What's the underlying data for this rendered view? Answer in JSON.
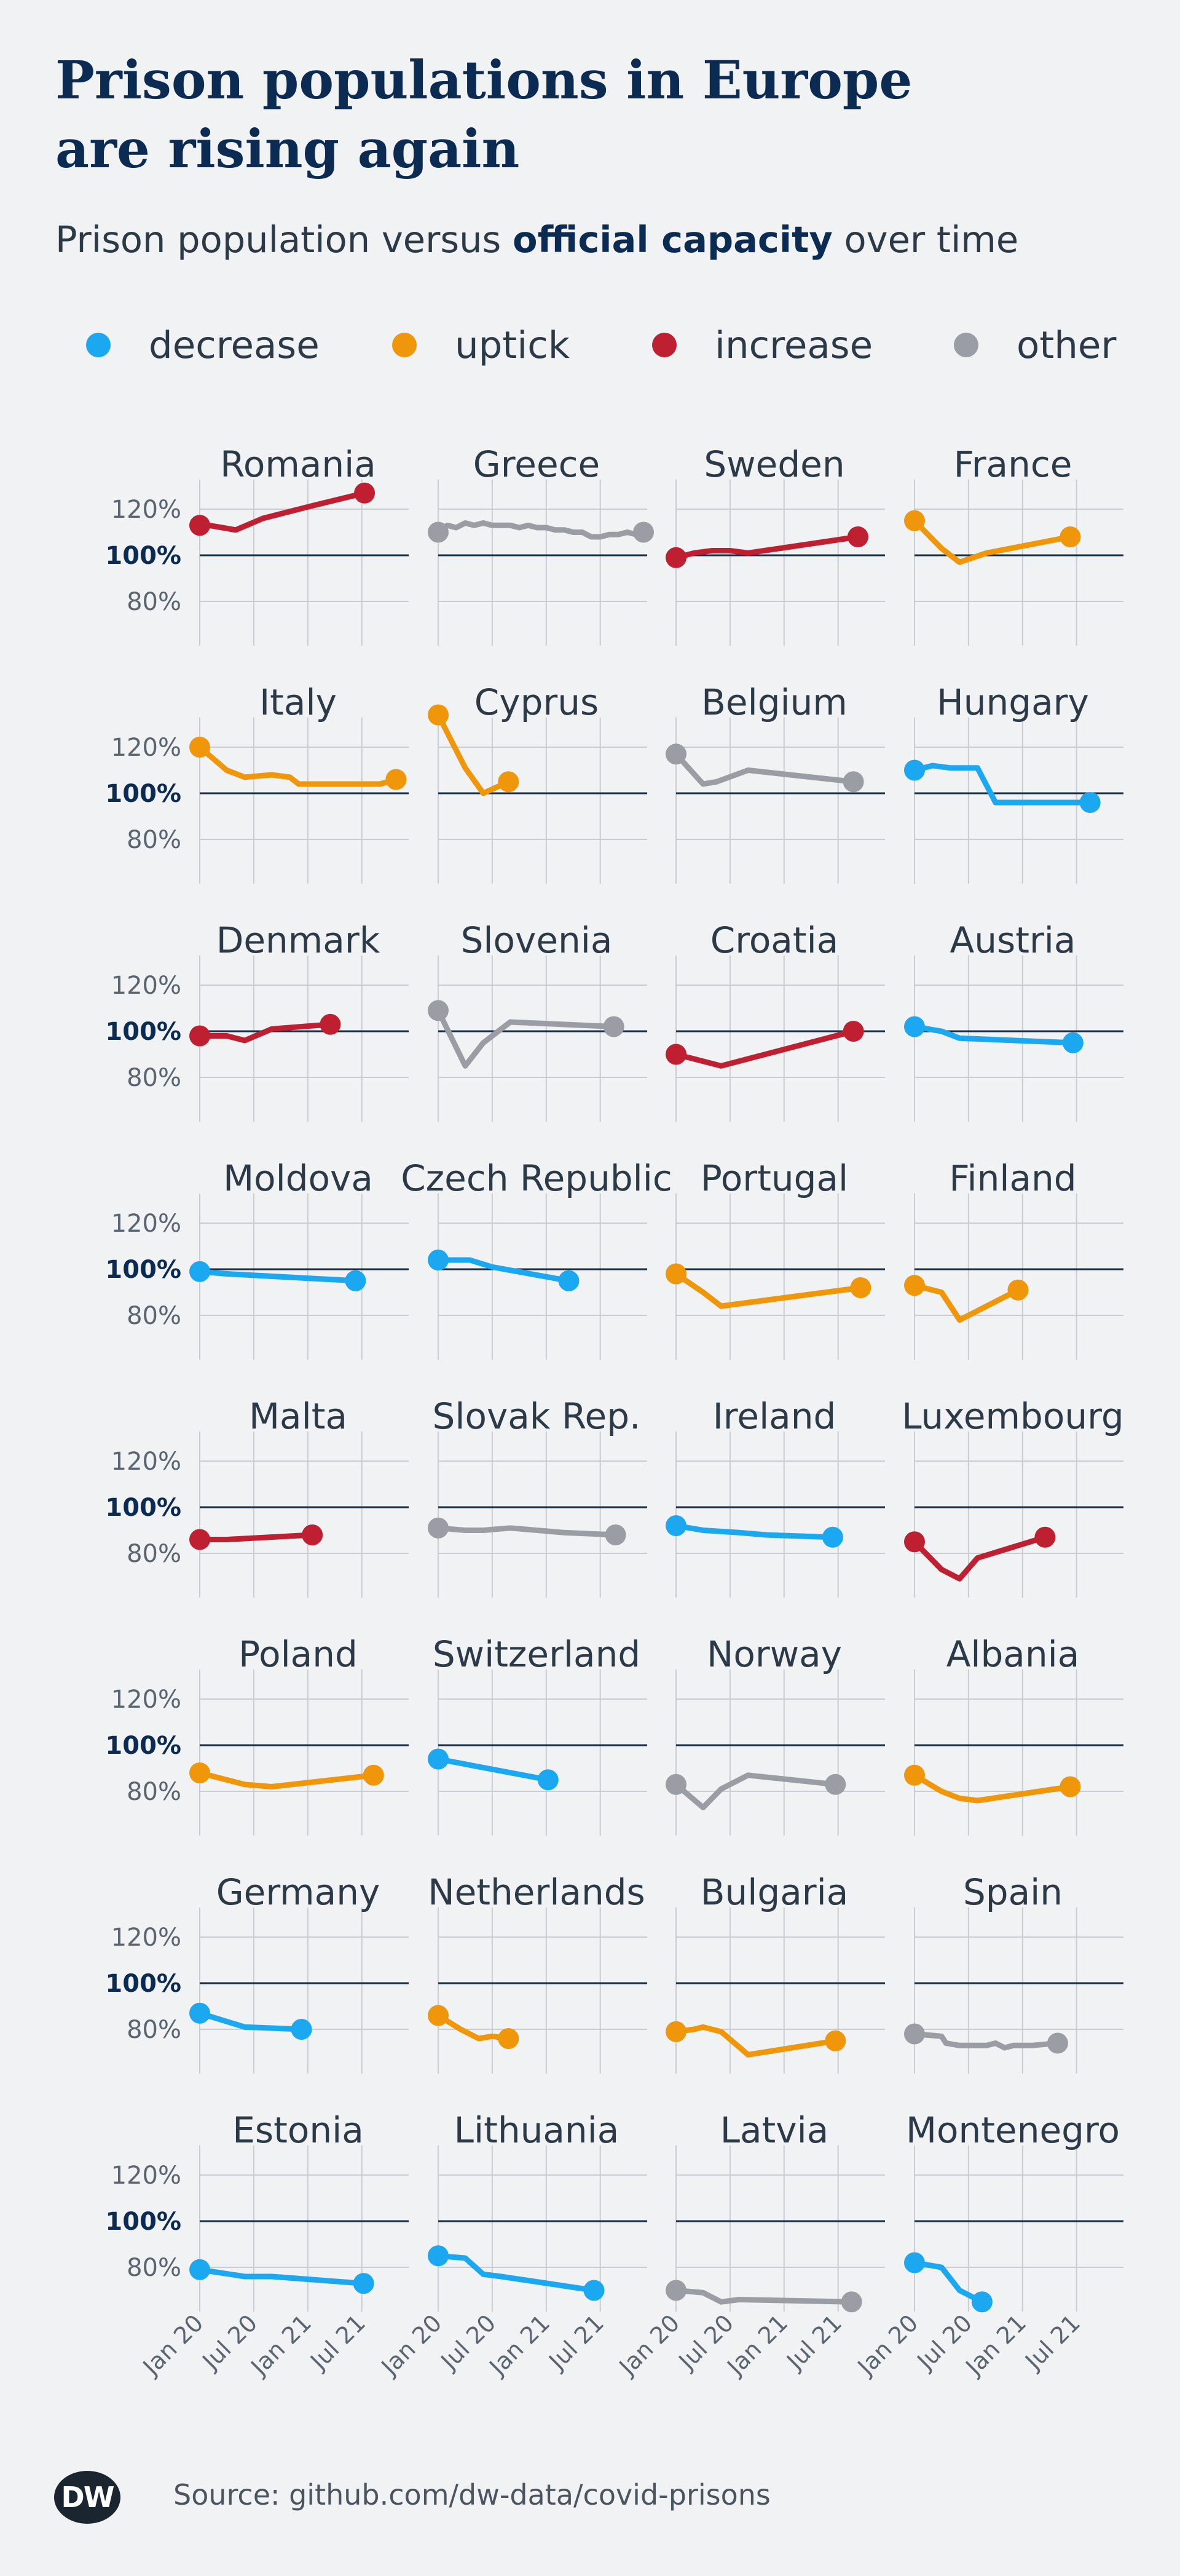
{
  "title_line1": "Prison populations in Europe",
  "title_line2": "are rising again",
  "subtitle": {
    "before": "Prison population versus ",
    "bold": "official capacity",
    "after": " over time"
  },
  "legend": [
    {
      "label": "decrease",
      "color": "#1ba8f0"
    },
    {
      "label": "uptick",
      "color": "#f0960a"
    },
    {
      "label": "increase",
      "color": "#be2032"
    },
    {
      "label": "other",
      "color": "#9a9ea4"
    }
  ],
  "source": "Source: github.com/dw-data/covid-prisons",
  "logo": "DW",
  "chart_data": {
    "type": "line",
    "title": "Prison populations in Europe are rising again",
    "subtitle": "Prison population versus official capacity over time",
    "ylabel": "",
    "yticks": [
      "120%",
      "100%",
      "80%"
    ],
    "ytick_values": [
      120,
      100,
      80
    ],
    "ylim": [
      60,
      135
    ],
    "xticks": [
      "Jan 20",
      "Jul 20",
      "Jan 21",
      "Jul 21"
    ],
    "xtick_values": [
      0,
      6,
      12,
      18
    ],
    "xlim": [
      0,
      24
    ],
    "reference_line": 100,
    "grid": true,
    "colors": {
      "decrease": "#1ba8f0",
      "uptick": "#f0960a",
      "increase": "#be2032",
      "other": "#9a9ea4"
    },
    "panels": [
      {
        "country": "Romania",
        "category": "increase",
        "x": [
          0,
          1,
          2.5,
          4,
          7,
          12,
          18.3
        ],
        "y": [
          113,
          113,
          112,
          111,
          116,
          121,
          127
        ]
      },
      {
        "country": "Greece",
        "category": "other",
        "x": [
          0,
          1,
          2,
          3,
          4,
          5,
          6,
          7,
          8,
          9,
          10,
          11,
          12,
          13,
          14,
          15,
          16,
          17,
          18,
          19,
          20,
          21,
          22,
          22.8
        ],
        "y": [
          110,
          113,
          112,
          114,
          113,
          114,
          113,
          113,
          113,
          112,
          113,
          112,
          112,
          111,
          111,
          110,
          110,
          108,
          108,
          109,
          109,
          110,
          109,
          110
        ]
      },
      {
        "country": "Sweden",
        "category": "increase",
        "x": [
          0,
          2,
          4,
          6,
          8,
          20.2
        ],
        "y": [
          99,
          101,
          102,
          102,
          101,
          108
        ]
      },
      {
        "country": "France",
        "category": "uptick",
        "x": [
          0,
          3,
          5,
          8,
          17.3
        ],
        "y": [
          115,
          103,
          97,
          101,
          108
        ]
      },
      {
        "country": "Italy",
        "category": "uptick",
        "x": [
          0,
          3,
          5,
          8,
          10,
          11,
          13,
          16,
          18,
          20,
          21.8
        ],
        "y": [
          120,
          110,
          107,
          108,
          107,
          104,
          104,
          104,
          104,
          104,
          106
        ]
      },
      {
        "country": "Cyprus",
        "category": "uptick",
        "x": [
          0,
          3,
          5,
          7.8
        ],
        "y": [
          134,
          111,
          100,
          105
        ]
      },
      {
        "country": "Belgium",
        "category": "other",
        "x": [
          0,
          3,
          4.5,
          8,
          19.7
        ],
        "y": [
          117,
          104,
          105,
          110,
          105
        ]
      },
      {
        "country": "Hungary",
        "category": "decrease",
        "x": [
          0,
          2,
          4,
          7,
          9,
          19.5
        ],
        "y": [
          110,
          112,
          111,
          111,
          96,
          96
        ]
      },
      {
        "country": "Denmark",
        "category": "increase",
        "x": [
          0,
          3,
          5,
          8,
          14.5
        ],
        "y": [
          98,
          98,
          96,
          101,
          103
        ]
      },
      {
        "country": "Slovenia",
        "category": "other",
        "x": [
          0,
          3,
          5,
          8,
          19.5
        ],
        "y": [
          109,
          85,
          95,
          104,
          102
        ]
      },
      {
        "country": "Croatia",
        "category": "increase",
        "x": [
          0,
          5,
          19.7
        ],
        "y": [
          90,
          85,
          100
        ]
      },
      {
        "country": "Austria",
        "category": "decrease",
        "x": [
          0,
          3,
          5,
          17.6
        ],
        "y": [
          102,
          100,
          97,
          95
        ]
      },
      {
        "country": "Moldova",
        "category": "decrease",
        "x": [
          0,
          3,
          17.3
        ],
        "y": [
          99,
          98,
          95
        ]
      },
      {
        "country": "Czech Republic",
        "category": "decrease",
        "x": [
          0,
          3.5,
          6,
          14.5
        ],
        "y": [
          104,
          104,
          101,
          95
        ]
      },
      {
        "country": "Portugal",
        "category": "uptick",
        "x": [
          0,
          3,
          5,
          20.5
        ],
        "y": [
          98,
          90,
          84,
          92
        ]
      },
      {
        "country": "Finland",
        "category": "uptick",
        "x": [
          0,
          3,
          5,
          11.5
        ],
        "y": [
          93,
          90,
          78,
          91
        ]
      },
      {
        "country": "Malta",
        "category": "increase",
        "x": [
          0,
          3,
          12.5
        ],
        "y": [
          86,
          86,
          88
        ]
      },
      {
        "country": "Slovak Rep.",
        "category": "other",
        "x": [
          0,
          3,
          5,
          8,
          14,
          19.7
        ],
        "y": [
          91,
          90,
          90,
          91,
          89,
          88
        ]
      },
      {
        "country": "Ireland",
        "category": "decrease",
        "x": [
          0,
          3,
          7,
          10,
          17.4
        ],
        "y": [
          92,
          90,
          89,
          88,
          87
        ]
      },
      {
        "country": "Luxembourg",
        "category": "increase",
        "x": [
          0,
          3,
          5,
          7,
          14.5
        ],
        "y": [
          85,
          73,
          69,
          78,
          87
        ]
      },
      {
        "country": "Poland",
        "category": "uptick",
        "x": [
          0,
          5,
          8,
          19.3
        ],
        "y": [
          88,
          83,
          82,
          87
        ]
      },
      {
        "country": "Switzerland",
        "category": "decrease",
        "x": [
          0,
          12.2
        ],
        "y": [
          94,
          85
        ]
      },
      {
        "country": "Norway",
        "category": "other",
        "x": [
          0,
          3,
          5,
          8,
          17.7
        ],
        "y": [
          83,
          73,
          81,
          87,
          83
        ]
      },
      {
        "country": "Albania",
        "category": "uptick",
        "x": [
          0,
          3,
          5,
          7,
          17.3
        ],
        "y": [
          87,
          80,
          77,
          76,
          82
        ]
      },
      {
        "country": "Germany",
        "category": "decrease",
        "x": [
          0,
          5,
          11.3
        ],
        "y": [
          87,
          81,
          80
        ]
      },
      {
        "country": "Netherlands",
        "category": "uptick",
        "x": [
          0,
          2.5,
          4.5,
          6,
          7.8
        ],
        "y": [
          86,
          80,
          76,
          77,
          76
        ]
      },
      {
        "country": "Bulgaria",
        "category": "uptick",
        "x": [
          0,
          2,
          3,
          5,
          8,
          17.7
        ],
        "y": [
          79,
          80,
          81,
          79,
          69,
          75
        ]
      },
      {
        "country": "Spain",
        "category": "other",
        "x": [
          0,
          3,
          3.5,
          5,
          7,
          8,
          9,
          10,
          11,
          13,
          15.9
        ],
        "y": [
          78,
          77,
          74,
          73,
          73,
          73,
          74,
          72,
          73,
          73,
          74
        ]
      },
      {
        "country": "Estonia",
        "category": "decrease",
        "x": [
          0,
          5,
          8,
          18.2
        ],
        "y": [
          79,
          76,
          76,
          73
        ]
      },
      {
        "country": "Lithuania",
        "category": "decrease",
        "x": [
          0,
          3,
          5,
          7,
          17.3
        ],
        "y": [
          85,
          84,
          77,
          76,
          70
        ]
      },
      {
        "country": "Latvia",
        "category": "other",
        "x": [
          0,
          3,
          5,
          7,
          19.5
        ],
        "y": [
          70,
          69,
          65,
          66,
          65
        ]
      },
      {
        "country": "Montenegro",
        "category": "decrease",
        "x": [
          0,
          3,
          5,
          7.5
        ],
        "y": [
          82,
          80,
          70,
          65
        ]
      }
    ]
  }
}
